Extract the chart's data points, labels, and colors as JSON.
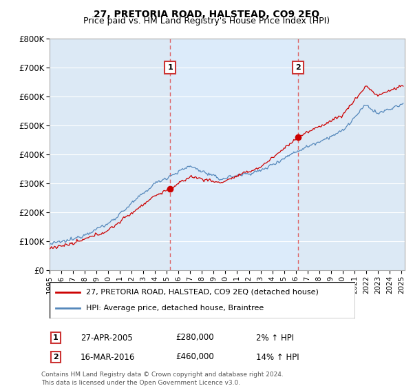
{
  "title": "27, PRETORIA ROAD, HALSTEAD, CO9 2EQ",
  "subtitle": "Price paid vs. HM Land Registry's House Price Index (HPI)",
  "background_color": "#ffffff",
  "plot_bg_color": "#dce9f5",
  "plot_bg_color2": "#e8f0f8",
  "grid_color": "#ffffff",
  "ylim": [
    0,
    800000
  ],
  "yticks": [
    0,
    100000,
    200000,
    300000,
    400000,
    500000,
    600000,
    700000,
    800000
  ],
  "ytick_labels": [
    "£0",
    "£100K",
    "£200K",
    "£300K",
    "£400K",
    "£500K",
    "£600K",
    "£700K",
    "£800K"
  ],
  "xlim_start": 1995.0,
  "xlim_end": 2025.3,
  "xticks": [
    1995,
    1996,
    1997,
    1998,
    1999,
    2000,
    2001,
    2002,
    2003,
    2004,
    2005,
    2006,
    2007,
    2008,
    2009,
    2010,
    2011,
    2012,
    2013,
    2014,
    2015,
    2016,
    2017,
    2018,
    2019,
    2020,
    2021,
    2022,
    2023,
    2024,
    2025
  ],
  "sale1_x": 2005.29,
  "sale1_y": 280000,
  "sale2_x": 2016.21,
  "sale2_y": 460000,
  "legend_line1": "27, PRETORIA ROAD, HALSTEAD, CO9 2EQ (detached house)",
  "legend_line2": "HPI: Average price, detached house, Braintree",
  "annotation1_date": "27-APR-2005",
  "annotation1_price": "£280,000",
  "annotation1_hpi": "2% ↑ HPI",
  "annotation2_date": "16-MAR-2016",
  "annotation2_price": "£460,000",
  "annotation2_hpi": "14% ↑ HPI",
  "footer": "Contains HM Land Registry data © Crown copyright and database right 2024.\nThis data is licensed under the Open Government Licence v3.0.",
  "red_line_color": "#cc0000",
  "blue_line_color": "#5588bb",
  "marker_color": "#cc0000",
  "vline_color": "#dd4444"
}
